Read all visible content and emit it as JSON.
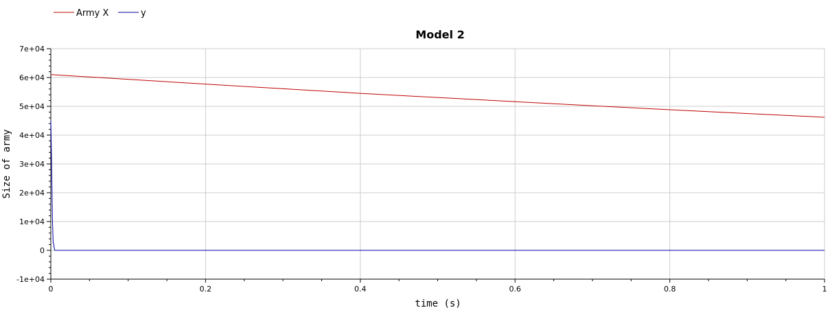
{
  "chart_data": {
    "type": "line",
    "title": "Model 2",
    "xlabel": "time (s)",
    "ylabel": "Size of army",
    "xlim": [
      0,
      1
    ],
    "ylim": [
      -10000,
      70000
    ],
    "x_ticks": [
      "0",
      "0.2",
      "0.4",
      "0.6",
      "0.8",
      "1"
    ],
    "x_tick_values": [
      0,
      0.2,
      0.4,
      0.6,
      0.8,
      1
    ],
    "y_ticks": [
      "-1e+04",
      "0",
      "1e+04",
      "2e+04",
      "3e+04",
      "4e+04",
      "5e+04",
      "6e+04",
      "7e+04"
    ],
    "y_tick_values": [
      -10000,
      0,
      10000,
      20000,
      30000,
      40000,
      50000,
      60000,
      70000
    ],
    "grid": true,
    "legend_position": "top-left",
    "series": [
      {
        "name": "Army X",
        "color": "#c00000",
        "x": [
          0,
          0.2,
          0.4,
          0.6,
          0.8,
          1
        ],
        "y": [
          61000,
          57700,
          54500,
          51600,
          48800,
          46200
        ]
      },
      {
        "name": "y",
        "color": "#0000a0",
        "x": [
          0,
          0.0005,
          0.001,
          0.0015,
          0.002,
          0.003,
          0.005,
          0.2,
          0.4,
          0.6,
          0.8,
          1
        ],
        "y": [
          45000,
          38000,
          30000,
          22000,
          12000,
          3000,
          0,
          0,
          0,
          0,
          0,
          0
        ]
      }
    ]
  }
}
